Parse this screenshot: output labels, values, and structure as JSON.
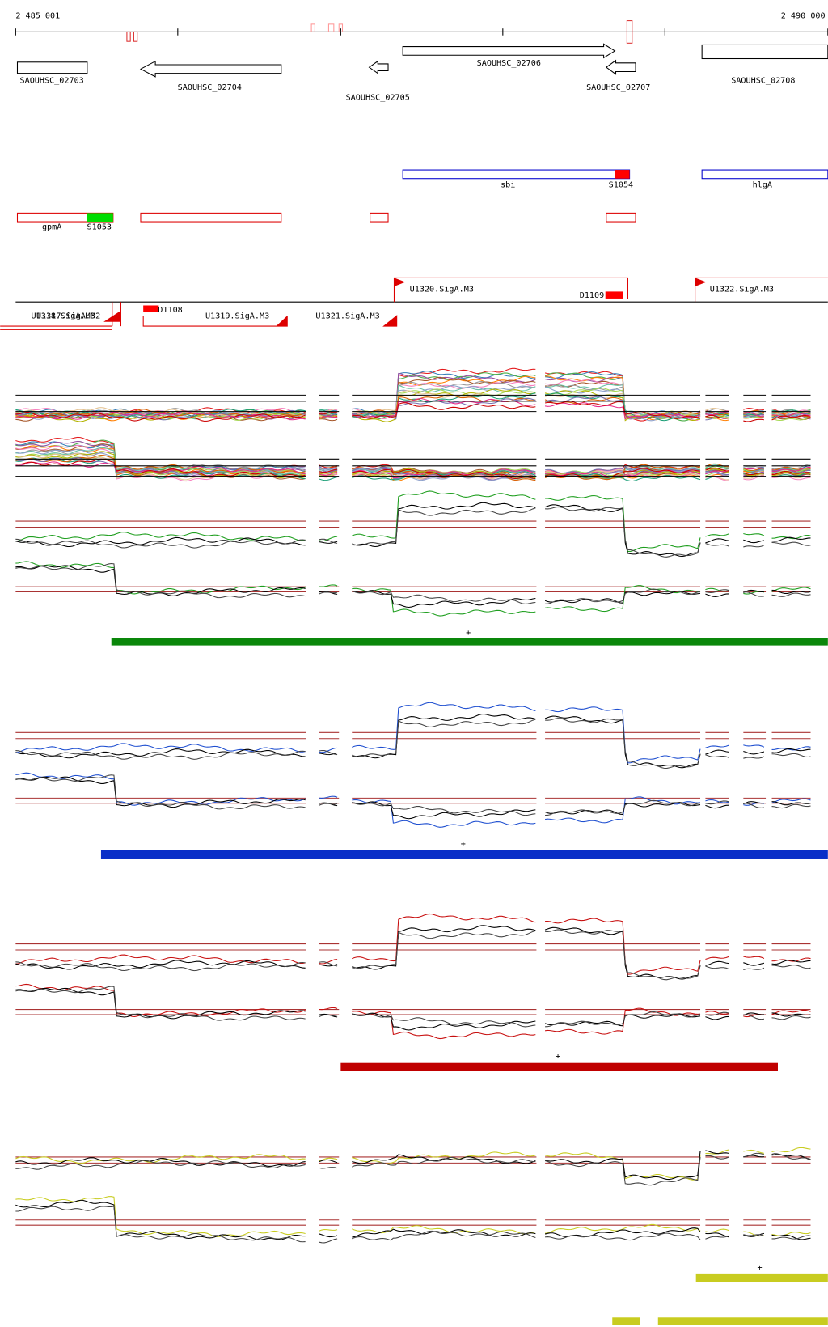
{
  "ruler": {
    "start": "2 485 001",
    "end": "2 490 000"
  },
  "genes": [
    "SAOUHSC_02703",
    "SAOUHSC_02704",
    "SAOUHSC_02705",
    "SAOUHSC_02706",
    "SAOUHSC_02707",
    "SAOUHSC_02708"
  ],
  "features": [
    "sbi",
    "S1054",
    "hlgA",
    "gpmA",
    "S1053"
  ],
  "transcripts": [
    "U1320.SigA.M3",
    "D1109",
    "U1322.SigA.M3",
    "U1318.SigA.M3",
    "U1317.SigA.M2",
    "D1108",
    "U1319.SigA.M3",
    "U1321.SigA.M3"
  ],
  "strand_marks": [
    "+",
    "+",
    "+",
    "+",
    "-",
    "-",
    "-"
  ]
}
